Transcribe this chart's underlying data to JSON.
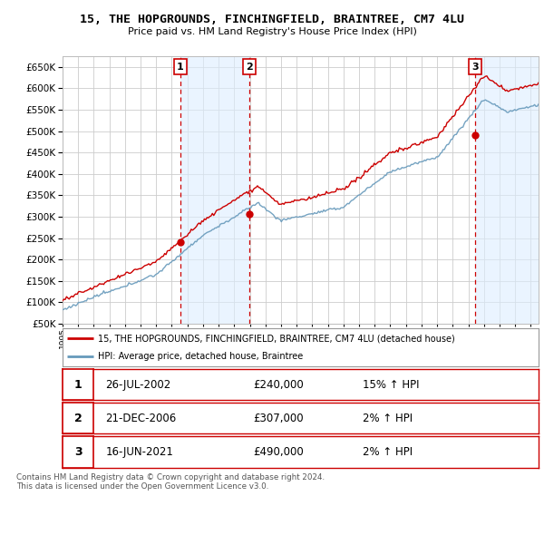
{
  "title1": "15, THE HOPGROUNDS, FINCHINGFIELD, BRAINTREE, CM7 4LU",
  "title2": "Price paid vs. HM Land Registry's House Price Index (HPI)",
  "legend_line1": "15, THE HOPGROUNDS, FINCHINGFIELD, BRAINTREE, CM7 4LU (detached house)",
  "legend_line2": "HPI: Average price, detached house, Braintree",
  "sale1_label": "1",
  "sale1_date": "26-JUL-2002",
  "sale1_price": "£240,000",
  "sale1_hpi": "15% ↑ HPI",
  "sale2_label": "2",
  "sale2_date": "21-DEC-2006",
  "sale2_price": "£307,000",
  "sale2_hpi": "2% ↑ HPI",
  "sale3_label": "3",
  "sale3_date": "16-JUN-2021",
  "sale3_price": "£490,000",
  "sale3_hpi": "2% ↑ HPI",
  "footnote": "Contains HM Land Registry data © Crown copyright and database right 2024.\nThis data is licensed under the Open Government Licence v3.0.",
  "sale_color": "#cc0000",
  "hpi_color": "#aaccee",
  "hpi_color_dark": "#6699bb",
  "vline_color": "#cc0000",
  "shade_color": "#ddeeff",
  "grid_color": "#cccccc",
  "bg_color": "#ffffff",
  "plot_bg": "#ffffff",
  "ylim": [
    50000,
    675000
  ],
  "yticks": [
    50000,
    100000,
    150000,
    200000,
    250000,
    300000,
    350000,
    400000,
    450000,
    500000,
    550000,
    600000,
    650000
  ],
  "x_start_year": 1995,
  "x_end_year": 2025.5,
  "sale1_year": 2002.55,
  "sale2_year": 2006.97,
  "sale3_year": 2021.45,
  "sale1_price_val": 240000,
  "sale2_price_val": 307000,
  "sale3_price_val": 490000
}
